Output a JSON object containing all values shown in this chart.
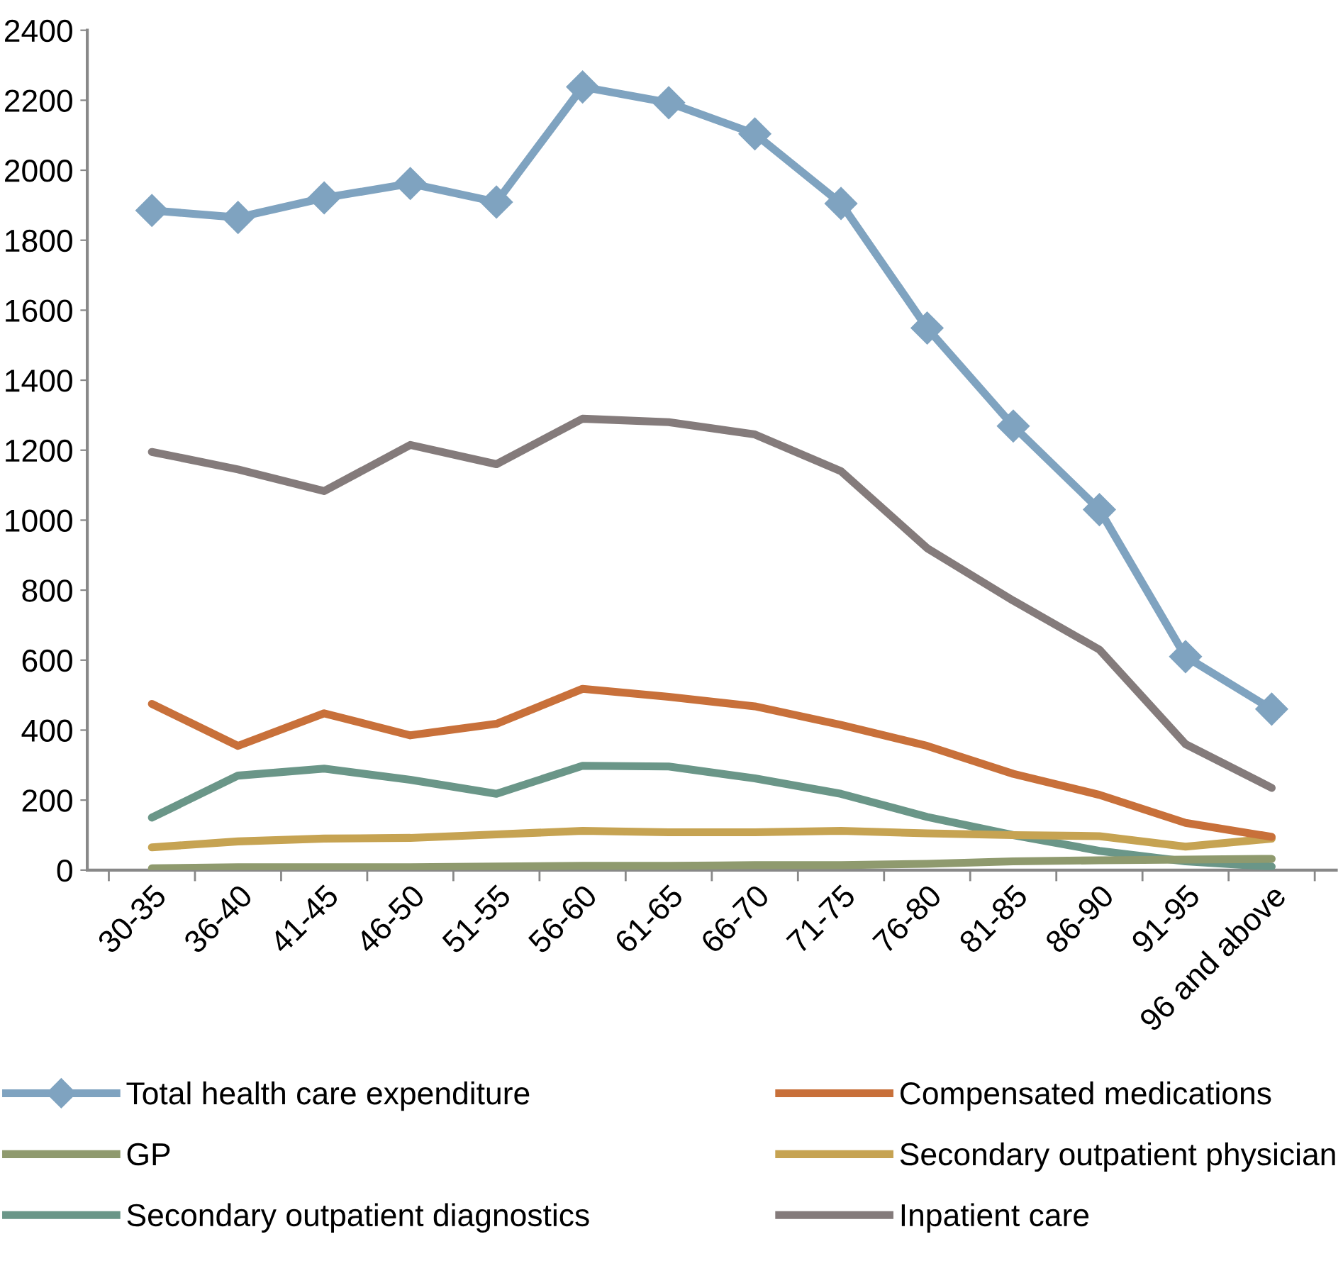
{
  "chart_data": {
    "type": "line",
    "categories": [
      "30-35",
      "36-40",
      "41-45",
      "46-50",
      "51-55",
      "56-60",
      "61-65",
      "66-70",
      "71-75",
      "76-80",
      "81-85",
      "86-90",
      "91-95",
      "96 and above"
    ],
    "ylim": [
      0,
      2400
    ],
    "yticks": [
      0,
      200,
      400,
      600,
      800,
      1000,
      1200,
      1400,
      1600,
      1800,
      2000,
      2200,
      2400
    ],
    "grid": false,
    "legend": "bottom",
    "series": [
      {
        "name": "Total health care expenditure",
        "color": "#7fa3c0",
        "marker": "diamond",
        "values": [
          1885,
          1865,
          1921,
          1962,
          1909,
          2238,
          2193,
          2104,
          1905,
          1549,
          1269,
          1030,
          610,
          460
        ]
      },
      {
        "name": "Compensated medications",
        "color": "#c8703a",
        "values": [
          475,
          355,
          448,
          385,
          418,
          518,
          495,
          468,
          415,
          355,
          275,
          215,
          135,
          95
        ]
      },
      {
        "name": "GP",
        "color": "#8f9a6e",
        "values": [
          5,
          8,
          8,
          8,
          10,
          12,
          12,
          14,
          14,
          18,
          25,
          28,
          30,
          32
        ]
      },
      {
        "name": "Secondary outpatient physician",
        "color": "#c6a352",
        "values": [
          65,
          82,
          90,
          92,
          102,
          112,
          108,
          108,
          112,
          105,
          100,
          97,
          67,
          90
        ]
      },
      {
        "name": "Secondary outpatient diagnostics",
        "color": "#6a9688",
        "values": [
          150,
          270,
          290,
          258,
          218,
          298,
          296,
          262,
          218,
          152,
          100,
          55,
          25,
          10
        ]
      },
      {
        "name": "Inpatient care",
        "color": "#847b7b",
        "values": [
          1195,
          1145,
          1083,
          1215,
          1160,
          1290,
          1280,
          1245,
          1140,
          920,
          770,
          630,
          360,
          235
        ]
      }
    ]
  }
}
